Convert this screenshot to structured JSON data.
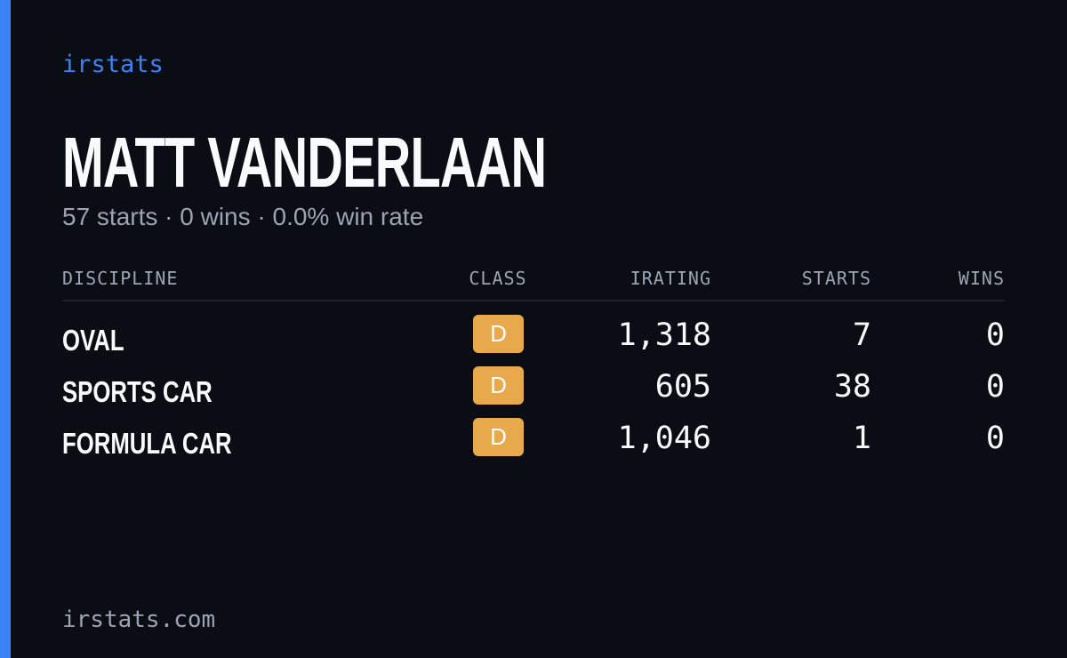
{
  "brand": "irstats",
  "header": {
    "title": "MATT VANDERLAAN",
    "subtitle": "57 starts · 0 wins · 0.0% win rate"
  },
  "table": {
    "columns": [
      "DISCIPLINE",
      "CLASS",
      "IRATING",
      "STARTS",
      "WINS"
    ],
    "rows": [
      [
        "OVAL",
        "D",
        "1,318",
        "7",
        "0"
      ],
      [
        "SPORTS CAR",
        "D",
        "605",
        "38",
        "0"
      ],
      [
        "FORMULA CAR",
        "D",
        "1,046",
        "1",
        "0"
      ]
    ]
  },
  "footer": "irstats.com"
}
